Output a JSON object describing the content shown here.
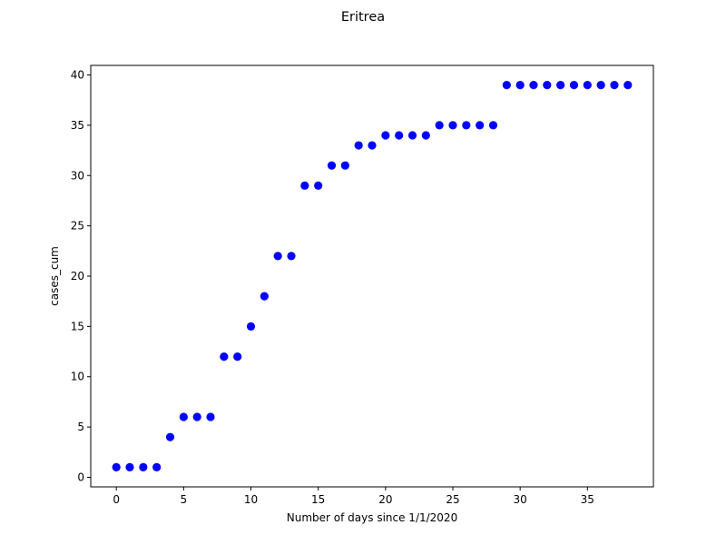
{
  "chart_data": {
    "type": "scatter",
    "title": "Eritrea",
    "xlabel": "Number of days since 1/1/2020",
    "ylabel": "cases_cum",
    "xlim": [
      -1.9,
      39.9
    ],
    "ylim": [
      -0.95,
      40.95
    ],
    "x_ticks": [
      0,
      5,
      10,
      15,
      20,
      25,
      30,
      35
    ],
    "y_ticks": [
      0,
      5,
      10,
      15,
      20,
      25,
      30,
      35,
      40
    ],
    "grid": false,
    "marker_color": "#0000ff",
    "series": [
      {
        "x": [
          0,
          1,
          2,
          3,
          4,
          5,
          6,
          7,
          8,
          9,
          10,
          11,
          12,
          13,
          14,
          15,
          16,
          17,
          18,
          19,
          20,
          21,
          22,
          23,
          24,
          25,
          26,
          27,
          28,
          29,
          30,
          31,
          32,
          33,
          34,
          35,
          36,
          37,
          38
        ],
        "y": [
          1,
          1,
          1,
          1,
          4,
          6,
          6,
          6,
          12,
          12,
          15,
          18,
          22,
          22,
          29,
          29,
          31,
          31,
          33,
          33,
          34,
          34,
          34,
          34,
          35,
          35,
          35,
          35,
          35,
          39,
          39,
          39,
          39,
          39,
          39,
          39,
          39,
          39,
          39
        ]
      }
    ]
  }
}
